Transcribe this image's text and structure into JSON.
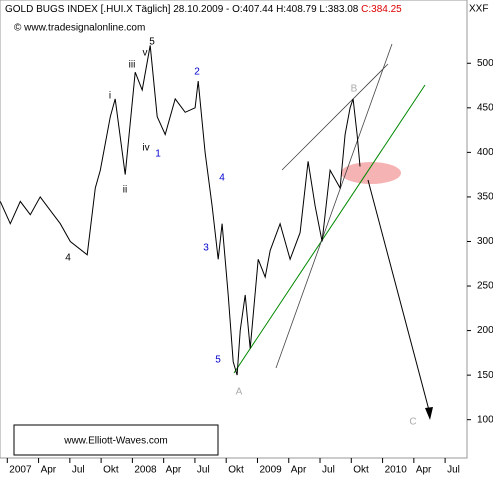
{
  "chart_data": {
    "type": "line",
    "title": "GOLD BUGS INDEX [.HUI.X",
    "subtitle": "Täglich] 28.10.2009 - O:407.44 H:408.79 L:383.08",
    "close_label": "C:384.25",
    "source": "© www.tradesignalonline.com",
    "corner_label": "XXF",
    "watermark": "www.Elliott-Waves.com",
    "x": [
      -0.67,
      0.29,
      1.25,
      2.21,
      3.16,
      4.12,
      5.08,
      6.04,
      7.67,
      8.44,
      8.92,
      9.88,
      10.35,
      11.31,
      12.27,
      12.94,
      13.71,
      14.38,
      15.15,
      16.11,
      17.07,
      18.02,
      18.31,
      18.98,
      19.65,
      20.23,
      20.61,
      21.19,
      21.67,
      22.05,
      22.34,
      22.82,
      23.3,
      24.07,
      24.74,
      25.22,
      26.17,
      27.13,
      28.09,
      28.86,
      29.53,
      30.2,
      30.97,
      31.93,
      32.41,
      32.89,
      33.17,
      33.56,
      33.84
    ],
    "series": [
      {
        "color": "#000000",
        "values": [
          345,
          320,
          345,
          330,
          350,
          335,
          320,
          300,
          285,
          360,
          380,
          440,
          460,
          375,
          490,
          470,
          520,
          440,
          420,
          460,
          445,
          450,
          480,
          400,
          340,
          280,
          320,
          240,
          165,
          150,
          200,
          240,
          180,
          280,
          260,
          290,
          320,
          280,
          310,
          390,
          340,
          300,
          380,
          360,
          420,
          450,
          460,
          420,
          384.25
        ]
      }
    ],
    "xlim": [
      -0.7,
      44.1
    ],
    "xticks": [
      {
        "value": 0,
        "label": "2007"
      },
      {
        "value": 3,
        "label": "Apr"
      },
      {
        "value": 6,
        "label": "Jul"
      },
      {
        "value": 9,
        "label": "Okt"
      },
      {
        "value": 12,
        "label": "2008"
      },
      {
        "value": 15,
        "label": "Apr"
      },
      {
        "value": 18,
        "label": "Jul"
      },
      {
        "value": 21,
        "label": "Okt"
      },
      {
        "value": 24,
        "label": "2009"
      },
      {
        "value": 27,
        "label": "Apr"
      },
      {
        "value": 30,
        "label": "Jul"
      },
      {
        "value": 33,
        "label": "Okt"
      },
      {
        "value": 36,
        "label": "2010"
      },
      {
        "value": 39,
        "label": "Apr"
      },
      {
        "value": 42,
        "label": "Jul"
      }
    ],
    "ylim": [
      57,
      571
    ],
    "yticks": [
      100,
      150,
      200,
      250,
      300,
      350,
      400,
      450,
      500
    ],
    "annotations": [
      "5",
      "v",
      "iii",
      "i",
      "iv",
      "ii",
      "1",
      "2",
      "3",
      "4",
      "5",
      "4",
      "A",
      "B",
      "C"
    ]
  }
}
